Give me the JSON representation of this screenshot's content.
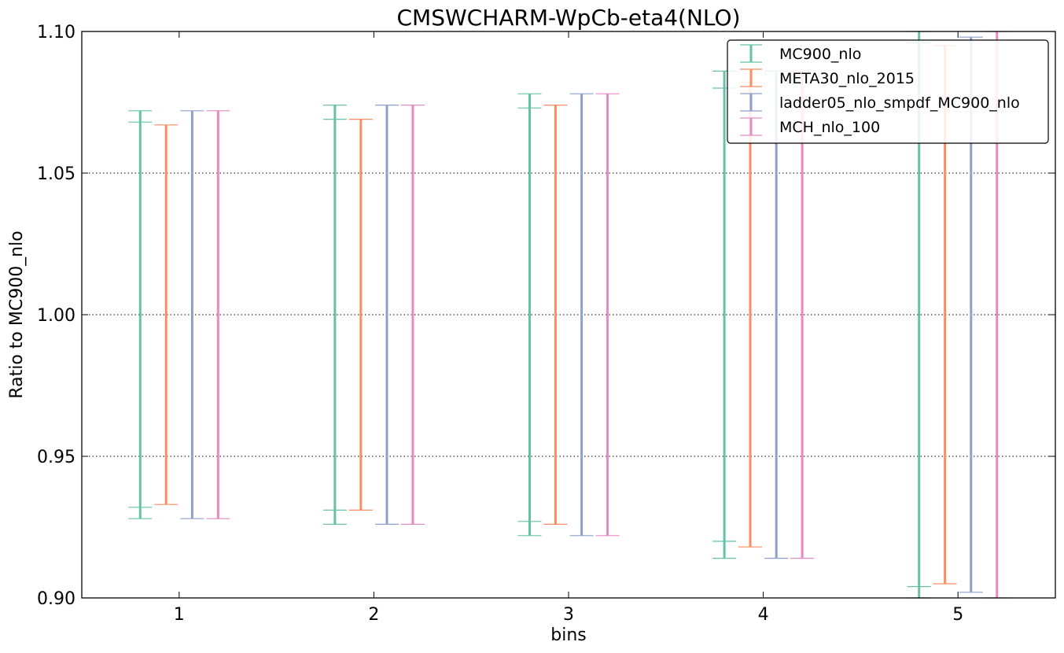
{
  "chart_data": {
    "type": "errorbar",
    "title": "CMSWCHARM-WpCb-eta4(NLO)",
    "xlabel": "bins",
    "ylabel": "Ratio to MC900_nlo",
    "xlim": [
      0.5,
      5.5
    ],
    "ylim": [
      0.9,
      1.1
    ],
    "x_ticks": [
      "1",
      "2",
      "3",
      "4",
      "5"
    ],
    "y_ticks": [
      "0.90",
      "0.95",
      "1.00",
      "1.05",
      "1.10"
    ],
    "grid": "horizontal-dotted",
    "legend_position": "top-right",
    "series": [
      {
        "name": "MC900_nlo",
        "color": "#66c2a5",
        "offset": -0.2,
        "outer": [
          [
            0.928,
            1.072
          ],
          [
            0.926,
            1.074
          ],
          [
            0.922,
            1.078
          ],
          [
            0.914,
            1.086
          ],
          [
            0.9,
            1.1
          ]
        ],
        "inner": [
          [
            0.932,
            1.068
          ],
          [
            0.931,
            1.069
          ],
          [
            0.927,
            1.073
          ],
          [
            0.92,
            1.08
          ],
          [
            0.904,
            1.096
          ]
        ]
      },
      {
        "name": "META30_nlo_2015",
        "color": "#fc8d62",
        "offset": -0.067,
        "outer": [
          [
            0.933,
            1.067
          ],
          [
            0.931,
            1.069
          ],
          [
            0.926,
            1.074
          ],
          [
            0.918,
            1.082
          ],
          [
            0.905,
            1.095
          ]
        ]
      },
      {
        "name": "ladder05_nlo_smpdf_MC900_nlo",
        "color": "#8da0cb",
        "offset": 0.067,
        "outer": [
          [
            0.928,
            1.072
          ],
          [
            0.926,
            1.074
          ],
          [
            0.922,
            1.078
          ],
          [
            0.914,
            1.086
          ],
          [
            0.902,
            1.098
          ]
        ]
      },
      {
        "name": "MCH_nlo_100",
        "color": "#e78ac3",
        "offset": 0.2,
        "outer": [
          [
            0.928,
            1.072
          ],
          [
            0.926,
            1.074
          ],
          [
            0.922,
            1.078
          ],
          [
            0.914,
            1.086
          ],
          [
            0.9,
            1.1
          ]
        ]
      }
    ]
  }
}
